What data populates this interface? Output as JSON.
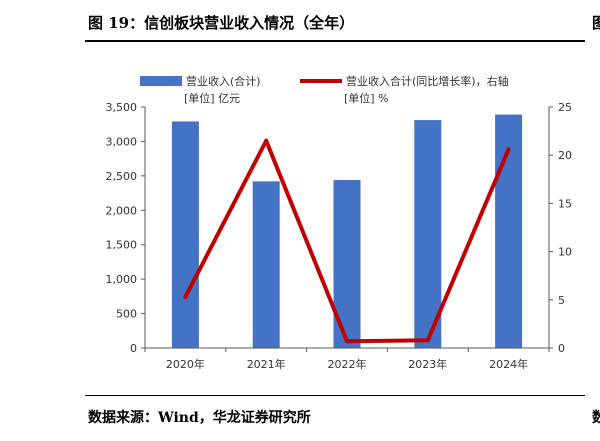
{
  "figure": {
    "title": "图 19：信创板块营业收入情况（全年）",
    "source": "数据来源：Wind，华龙证券研究所",
    "edge_char_top": "图",
    "edge_char_bottom": "数"
  },
  "chart_data": {
    "type": "bar",
    "categories": [
      "2020年",
      "2021年",
      "2022年",
      "2023年",
      "2024年"
    ],
    "series": [
      {
        "name": "营业收入(合计)",
        "unit_label": "[单位] 亿元",
        "type": "bar",
        "axis": "left",
        "color": "#4472C4",
        "values": [
          3290,
          2420,
          2440,
          3310,
          3390
        ]
      },
      {
        "name": "营业收入合计(同比增长率)，右轴",
        "unit_label": "[单位] %",
        "type": "line",
        "axis": "right",
        "color": "#C00000",
        "values": [
          5.3,
          21.5,
          0.7,
          0.8,
          20.6
        ]
      }
    ],
    "y_left": {
      "ylim": [
        0,
        3500
      ],
      "ticks": [
        0,
        500,
        1000,
        1500,
        2000,
        2500,
        3000,
        3500
      ],
      "tick_labels": [
        "0",
        "500",
        "1,000",
        "1,500",
        "2,000",
        "2,500",
        "3,000",
        "3,500"
      ]
    },
    "y_right": {
      "ylim": [
        0,
        25
      ],
      "ticks": [
        0,
        5,
        10,
        15,
        20,
        25
      ],
      "tick_labels": [
        "0",
        "5",
        "10",
        "15",
        "20",
        "25"
      ]
    },
    "grid": false,
    "legend_position": "top"
  }
}
